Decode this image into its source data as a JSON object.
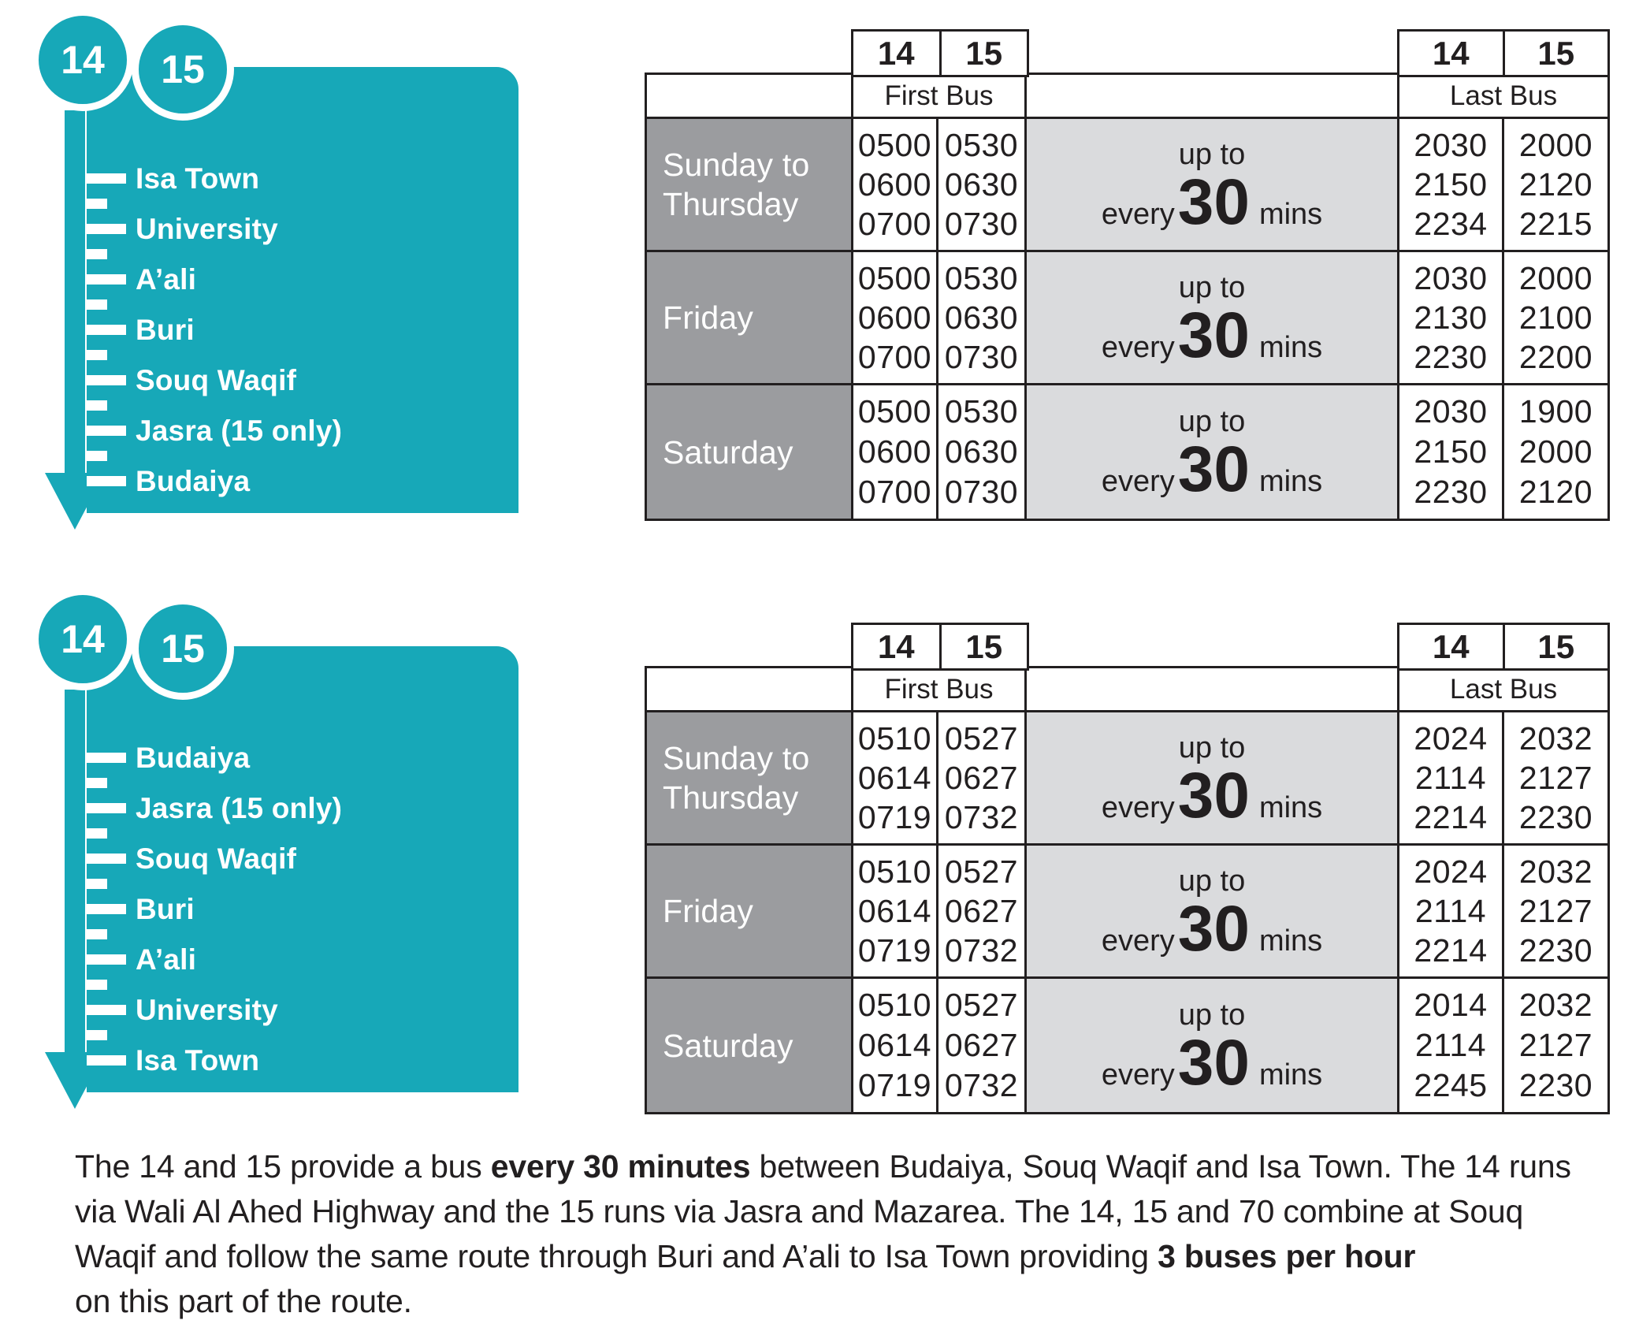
{
  "theme": {
    "teal": "#17a8b8",
    "day_gray": "#9b9c9f",
    "freq_gray": "#dadbdd",
    "ink": "#221f20"
  },
  "sections": [
    {
      "badges": [
        "14",
        "15"
      ],
      "stops": [
        "Isa Town",
        "University",
        "A’ali",
        "Buri",
        "Souq Waqif",
        "Jasra (15 only)",
        "Budaiya"
      ],
      "table": {
        "routes": [
          "14",
          "15"
        ],
        "first_label": "First Bus",
        "last_label": "Last Bus",
        "freq": {
          "upto": "up to",
          "every": "every",
          "big": "30",
          "mins": "mins"
        },
        "rows": [
          {
            "day": "Sunday to Thursday",
            "first14": [
              "0500",
              "0600",
              "0700"
            ],
            "first15": [
              "0530",
              "0630",
              "0730"
            ],
            "last14": [
              "2030",
              "2150",
              "2234"
            ],
            "last15": [
              "2000",
              "2120",
              "2215"
            ]
          },
          {
            "day": "Friday",
            "first14": [
              "0500",
              "0600",
              "0700"
            ],
            "first15": [
              "0530",
              "0630",
              "0730"
            ],
            "last14": [
              "2030",
              "2130",
              "2230"
            ],
            "last15": [
              "2000",
              "2100",
              "2200"
            ]
          },
          {
            "day": "Saturday",
            "first14": [
              "0500",
              "0600",
              "0700"
            ],
            "first15": [
              "0530",
              "0630",
              "0730"
            ],
            "last14": [
              "2030",
              "2150",
              "2230"
            ],
            "last15": [
              "1900",
              "2000",
              "2120"
            ]
          }
        ]
      }
    },
    {
      "badges": [
        "14",
        "15"
      ],
      "stops": [
        "Budaiya",
        "Jasra (15 only)",
        "Souq Waqif",
        "Buri",
        "A’ali",
        "University",
        "Isa Town"
      ],
      "table": {
        "routes": [
          "14",
          "15"
        ],
        "first_label": "First Bus",
        "last_label": "Last Bus",
        "freq": {
          "upto": "up to",
          "every": "every",
          "big": "30",
          "mins": "mins"
        },
        "rows": [
          {
            "day": "Sunday to Thursday",
            "first14": [
              "0510",
              "0614",
              "0719"
            ],
            "first15": [
              "0527",
              "0627",
              "0732"
            ],
            "last14": [
              "2024",
              "2114",
              "2214"
            ],
            "last15": [
              "2032",
              "2127",
              "2230"
            ]
          },
          {
            "day": "Friday",
            "first14": [
              "0510",
              "0614",
              "0719"
            ],
            "first15": [
              "0527",
              "0627",
              "0732"
            ],
            "last14": [
              "2024",
              "2114",
              "2214"
            ],
            "last15": [
              "2032",
              "2127",
              "2230"
            ]
          },
          {
            "day": "Saturday",
            "first14": [
              "0510",
              "0614",
              "0719"
            ],
            "first15": [
              "0527",
              "0627",
              "0732"
            ],
            "last14": [
              "2014",
              "2114",
              "2245"
            ],
            "last15": [
              "2032",
              "2127",
              "2230"
            ]
          }
        ]
      }
    }
  ],
  "footer": {
    "lines": [
      [
        {
          "t": "The 14 and 15 provide a bus ",
          "b": false
        },
        {
          "t": "every 30 minutes",
          "b": true
        },
        {
          "t": " between Budaiya, Souq Waqif and Isa Town. The 14 runs",
          "b": false
        }
      ],
      [
        {
          "t": "via Wali Al Ahed Highway and the 15 runs via Jasra and Mazarea. The 14, 15 and 70 combine at Souq",
          "b": false
        }
      ],
      [
        {
          "t": "Waqif and follow the same route through Buri and A’ali to Isa Town providing  ",
          "b": false
        },
        {
          "t": "3 buses per hour",
          "b": true
        }
      ],
      [
        {
          "t": "on this part of the route.",
          "b": false
        }
      ]
    ]
  }
}
